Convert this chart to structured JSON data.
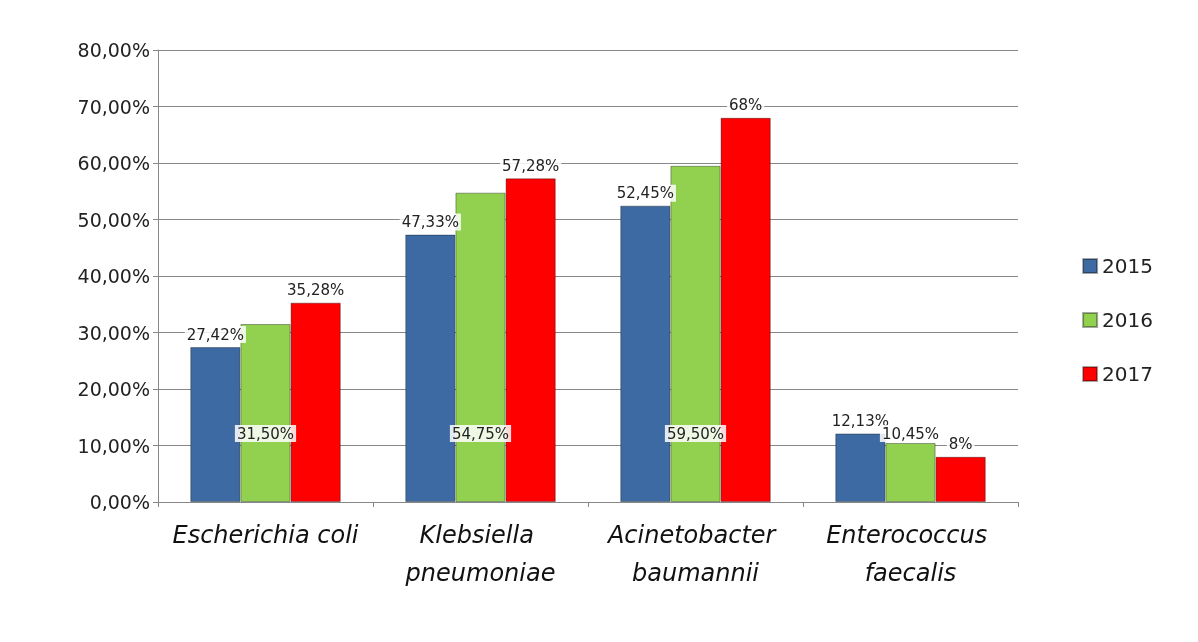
{
  "chart_data": {
    "type": "bar",
    "categories": [
      "Escherichia coli",
      "Klebsiella pneumoniae",
      "Acinetobacter baumannii",
      "Enterococcus faecalis"
    ],
    "series": [
      {
        "name": "2015",
        "color": "#3d6aa3",
        "values": [
          27.42,
          47.33,
          52.45,
          12.13
        ],
        "value_labels": [
          "27,42%",
          "47,33%",
          "52,45%",
          "12,13%"
        ]
      },
      {
        "name": "2016",
        "color": "#92d050",
        "values": [
          31.5,
          54.75,
          59.5,
          10.45
        ],
        "value_labels": [
          "31,50%",
          "54,75%",
          "59,50%",
          "10,45%"
        ]
      },
      {
        "name": "2017",
        "color": "#ff0000",
        "values": [
          35.28,
          57.28,
          68,
          8
        ],
        "value_labels": [
          "35,28%",
          "57,28%",
          "68%",
          "8%"
        ]
      }
    ],
    "ylim": [
      0,
      80
    ],
    "yticks": [
      {
        "value": 0,
        "label": "0,00%"
      },
      {
        "value": 10,
        "label": "10,00%"
      },
      {
        "value": 20,
        "label": "20,00%"
      },
      {
        "value": 30,
        "label": "30,00%"
      },
      {
        "value": 40,
        "label": "40,00%"
      },
      {
        "value": 50,
        "label": "50,00%"
      },
      {
        "value": 60,
        "label": "60,00%"
      },
      {
        "value": 70,
        "label": "70,00%"
      },
      {
        "value": 80,
        "label": "80,00%"
      }
    ],
    "grid": "y",
    "legend": "right"
  }
}
